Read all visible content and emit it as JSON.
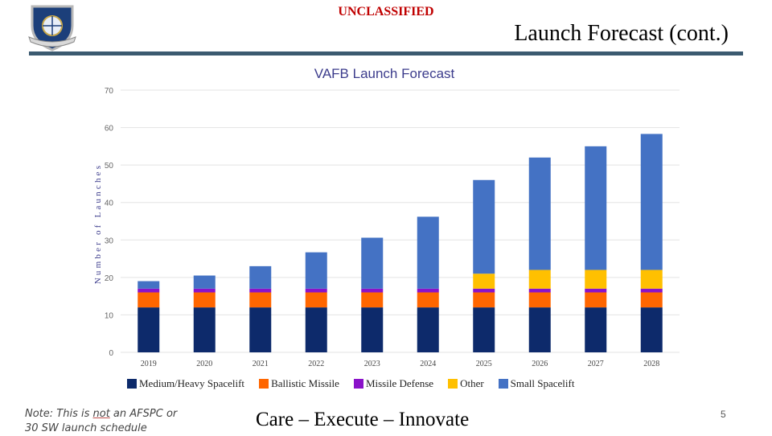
{
  "header": {
    "classification": "UNCLASSIFIED",
    "title": "Launch Forecast (cont.)"
  },
  "colors": {
    "medium_heavy": "#0d2a6b",
    "ballistic": "#ff6600",
    "missile_defense": "#8a12c9",
    "other": "#ffc000",
    "small": "#4472c4",
    "title_rule": "#3b5a70",
    "classification": "#c00000"
  },
  "chart_data": {
    "type": "bar",
    "stacked": true,
    "title": "VAFB Launch Forecast",
    "xlabel": "",
    "ylabel": "Number of Launches",
    "ylim": [
      0,
      70
    ],
    "yticks": [
      0,
      10,
      20,
      30,
      40,
      50,
      60,
      70
    ],
    "grid": true,
    "legend_position": "bottom",
    "categories": [
      "2019",
      "2020",
      "2021",
      "2022",
      "2023",
      "2024",
      "2025",
      "2026",
      "2027",
      "2028"
    ],
    "series": [
      {
        "name": "Medium/Heavy Spacelift",
        "color": "#0d2a6b",
        "values": [
          12,
          12,
          12,
          12,
          12,
          12,
          12,
          12,
          12,
          12
        ]
      },
      {
        "name": "Ballistic Missile",
        "color": "#ff6600",
        "values": [
          4,
          4,
          4,
          4,
          4,
          4,
          4,
          4,
          4,
          4
        ]
      },
      {
        "name": "Missile Defense",
        "color": "#8a12c9",
        "values": [
          1,
          1,
          1,
          1,
          1,
          1,
          1,
          1,
          1,
          1
        ]
      },
      {
        "name": "Other",
        "color": "#ffc000",
        "values": [
          0,
          0,
          0,
          0,
          0,
          0,
          4,
          5,
          5,
          5
        ]
      },
      {
        "name": "Small Spacelift",
        "color": "#4472c4",
        "values": [
          2,
          3.5,
          6,
          9.7,
          13.6,
          19.2,
          25,
          30,
          33,
          36.3
        ]
      }
    ]
  },
  "footer": {
    "note_prefix": "Note: This is ",
    "note_emphasis": "not",
    "note_suffix": " an AFSPC or",
    "note_line2": "30 SW launch schedule",
    "motto": "Care – Execute – Innovate",
    "page_number": "5"
  }
}
